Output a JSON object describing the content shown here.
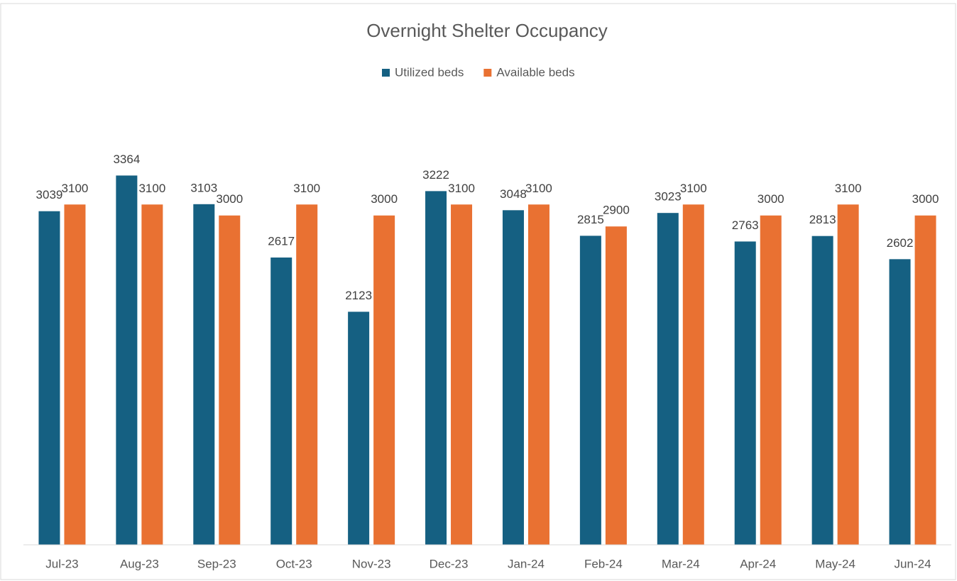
{
  "chart_data": {
    "type": "bar",
    "title": "Overnight Shelter Occupancy",
    "categories": [
      "Jul-23",
      "Aug-23",
      "Sep-23",
      "Oct-23",
      "Nov-23",
      "Dec-23",
      "Jan-24",
      "Feb-24",
      "Mar-24",
      "Apr-24",
      "May-24",
      "Jun-24"
    ],
    "series": [
      {
        "name": "Utilized beds",
        "color": "#156082",
        "values": [
          3039,
          3364,
          3103,
          2617,
          2123,
          3222,
          3048,
          2815,
          3023,
          2763,
          2813,
          2602
        ]
      },
      {
        "name": "Available beds",
        "color": "#e97132",
        "values": [
          3100,
          3100,
          3000,
          3100,
          3000,
          3100,
          3100,
          2900,
          3100,
          3000,
          3100,
          3000
        ]
      }
    ],
    "ylim": [
      0,
      4000
    ],
    "legend": "top",
    "grid": false
  }
}
